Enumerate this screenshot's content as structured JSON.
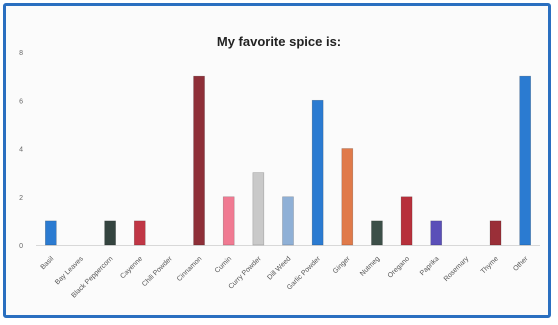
{
  "chart_data": {
    "type": "bar",
    "title": "My favorite spice is:",
    "categories": [
      "Basil",
      "Bay Leaves",
      "Black Peppercorn",
      "Cayenne",
      "Chili Powder",
      "Cinnamon",
      "Cumin",
      "Curry Powder",
      "Dill Weed",
      "Garlic Powder",
      "Ginger",
      "Nutmeg",
      "Oregano",
      "Paprika",
      "Rosemary",
      "Thyme",
      "Other"
    ],
    "values": [
      1,
      0,
      1,
      1,
      0,
      7,
      2,
      3,
      2,
      6,
      4,
      1,
      2,
      1,
      0,
      1,
      7
    ],
    "colors": [
      "#2b7bd1",
      "#aaaaaa",
      "#34443f",
      "#c03645",
      "#aaaaaa",
      "#8e2f38",
      "#f07a92",
      "#c9c9c9",
      "#8fb0d6",
      "#2b7bd1",
      "#e07a4a",
      "#3c4f48",
      "#b7303b",
      "#5a4fb8",
      "#aaaaaa",
      "#9a2f38",
      "#2b7bd1"
    ],
    "y_ticks": [
      0,
      2,
      4,
      6,
      8
    ],
    "ylim": [
      0,
      8
    ],
    "grid": false,
    "legend": "none"
  }
}
